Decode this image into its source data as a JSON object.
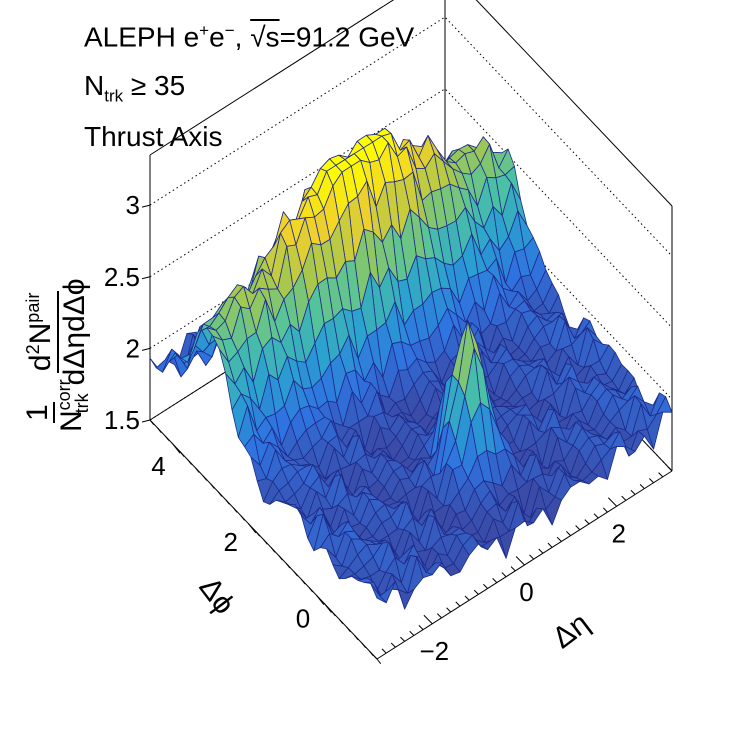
{
  "header": {
    "line1_pre": "ALEPH e",
    "line1_sup1": "+",
    "line1_mid": "e",
    "line1_sup2": "−",
    "line1_sep": ",  ",
    "line1_root": "√s",
    "line1_post": "=91.2 GeV",
    "line2_main": "N",
    "line2_sub": "trk",
    "line2_post": " ≥ 35",
    "line3": "Thrust Axis"
  },
  "zaxis_label": {
    "one": "1",
    "n": "N",
    "n_sup": "corr",
    "n_sub": "trk",
    "d2": "d",
    "d2_sup": "2",
    "npair": "N",
    "npair_sup": "pair",
    "den": "dΔηdΔϕ"
  },
  "chart_data": {
    "type": "surface",
    "xlabel": "Δη",
    "ylabel": "Δϕ",
    "xlim": [
      -3.2,
      3.2
    ],
    "ylim": [
      -1.5708,
      4.7124
    ],
    "zlim": [
      1.5,
      3.35
    ],
    "xticks": [
      "−2",
      "0",
      "2"
    ],
    "xtick_values": [
      -2,
      0,
      2
    ],
    "yticks": [
      "0",
      "2",
      "4"
    ],
    "ytick_values": [
      0,
      2,
      4
    ],
    "zticks": [
      "1.5",
      "2",
      "2.5",
      "3"
    ],
    "ztick_values": [
      1.5,
      2,
      2.5,
      3
    ],
    "features": {
      "near_side_peak": {
        "deta": 0,
        "dphi": 0,
        "height": 2.75
      },
      "away_side_ridge": {
        "dphi": 3.1416,
        "height": 3.2
      },
      "baseline": 1.75
    },
    "colormap": [
      "#3a4ba8",
      "#2f73e0",
      "#2aa0d0",
      "#4fc3a0",
      "#a7c84c",
      "#f0d02a",
      "#fffc00"
    ],
    "line_color": "#1e2b8a"
  }
}
